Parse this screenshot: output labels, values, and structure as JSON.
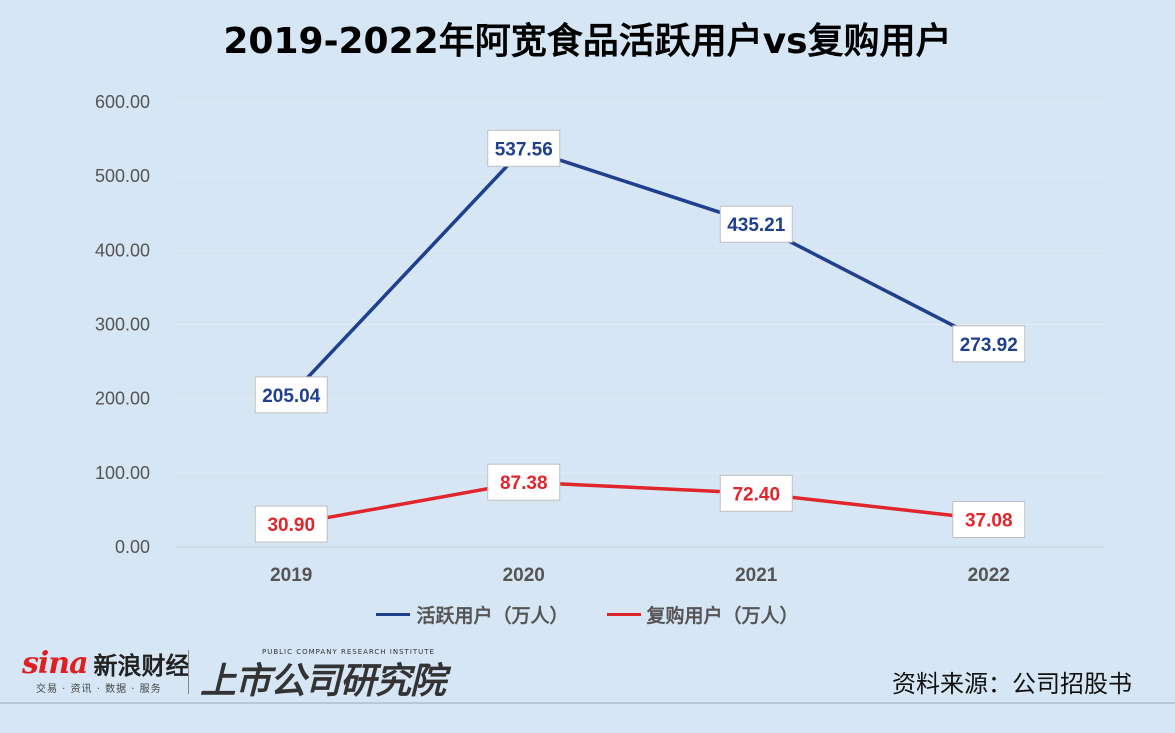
{
  "chart_data": {
    "type": "line",
    "title": "2019-2022年阿宽食品活跃用户vs复购用户",
    "categories": [
      "2019",
      "2020",
      "2021",
      "2022"
    ],
    "ylim": [
      0,
      600
    ],
    "yticks": [
      "0.00",
      "100.00",
      "200.00",
      "300.00",
      "400.00",
      "500.00",
      "600.00"
    ],
    "grid": true,
    "legend_position": "bottom",
    "series": [
      {
        "name": "活跃用户（万人）",
        "color": "#1f3f8f",
        "values": [
          205.04,
          537.56,
          435.21,
          273.92
        ],
        "labels": [
          "205.04",
          "537.56",
          "435.21",
          "273.92"
        ]
      },
      {
        "name": "复购用户（万人）",
        "color": "#e0252b",
        "values": [
          30.9,
          87.38,
          72.4,
          37.08
        ],
        "labels": [
          "30.90",
          "87.38",
          "72.40",
          "37.08"
        ]
      }
    ]
  },
  "footer": {
    "brand_mark": "sina",
    "brand_name": "新浪财经",
    "brand_sub": "交易 · 资讯 · 数据 · 服务",
    "institute_name": "上市公司研究院",
    "institute_en": "PUBLIC COMPANY RESEARCH INSTITUTE",
    "source": "资料来源：公司招股书"
  }
}
